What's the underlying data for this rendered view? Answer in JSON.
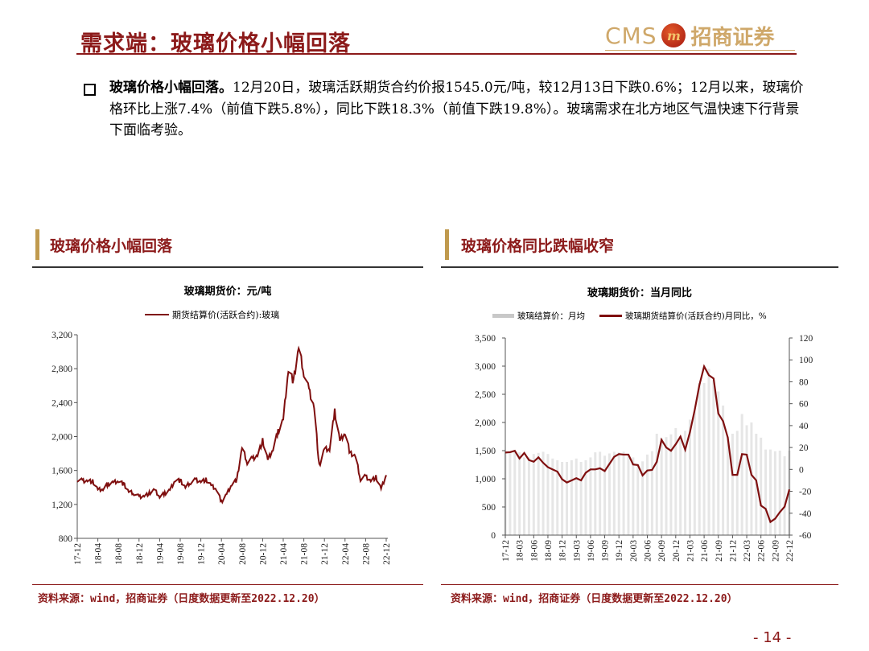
{
  "header": {
    "title": "需求端：玻璃价格小幅回落",
    "logo_text": "CMS",
    "logo_cn": "招商证券",
    "logo_badge": "m"
  },
  "bullet": {
    "bold": "玻璃价格小幅回落。",
    "text": "12月20日，玻璃活跃期货合约价报1545.0元/吨，较12月13日下跌0.6%；12月以来，玻璃价格环比上涨7.4%（前值下跌5.8%），同比下跌18.3%（前值下跌19.8%）。玻璃需求在北方地区气温快速下行背景下面临考验。"
  },
  "panels": [
    {
      "title": "玻璃价格小幅回落",
      "source": "资料来源：wind，招商证券（日度数据更新至2022.12.20）"
    },
    {
      "title": "玻璃价格同比跌幅收窄",
      "source": "资料来源：wind，招商证券（日度数据更新至2022.12.20）"
    }
  ],
  "page_number": "- 14 -",
  "colors": {
    "brand_red": "#8c1a1a",
    "line": "#7f0f0f",
    "gold": "#c09a4e",
    "bars": "#e6e6e6"
  },
  "chart_data": [
    {
      "type": "line",
      "title": "玻璃期货价：元/吨",
      "legend": [
        "期货结算价(活跃合约):玻璃"
      ],
      "legend_position": "top",
      "ylim": [
        800,
        3200
      ],
      "yticks": [
        "800",
        "1,200",
        "1,600",
        "2,000",
        "2,400",
        "2,800",
        "3,200"
      ],
      "xticks": [
        "17-12",
        "18-04",
        "18-08",
        "18-12",
        "19-04",
        "19-08",
        "19-12",
        "20-04",
        "20-08",
        "20-12",
        "21-04",
        "21-08",
        "21-12",
        "22-04",
        "22-08",
        "22-12"
      ],
      "grid": false,
      "series": [
        {
          "name": "期货结算价(活跃合约):玻璃",
          "x": [
            "17-12",
            "18-01",
            "18-02",
            "18-03",
            "18-04",
            "18-05",
            "18-06",
            "18-07",
            "18-08",
            "18-09",
            "18-10",
            "18-11",
            "18-12",
            "19-01",
            "19-02",
            "19-03",
            "19-04",
            "19-05",
            "19-06",
            "19-07",
            "19-08",
            "19-09",
            "19-10",
            "19-11",
            "19-12",
            "20-01",
            "20-02",
            "20-03",
            "20-04",
            "20-05",
            "20-06",
            "20-07",
            "20-08",
            "20-09",
            "20-10",
            "20-11",
            "20-12",
            "21-01",
            "21-02",
            "21-03",
            "21-04",
            "21-05",
            "21-06",
            "21-07",
            "21-08",
            "21-09",
            "21-10",
            "21-11",
            "21-12",
            "22-01",
            "22-02",
            "22-03",
            "22-04",
            "22-05",
            "22-06",
            "22-07",
            "22-08",
            "22-09",
            "22-10",
            "22-11",
            "22-12"
          ],
          "values": [
            1490,
            1480,
            1480,
            1470,
            1370,
            1380,
            1440,
            1460,
            1480,
            1440,
            1350,
            1330,
            1290,
            1300,
            1330,
            1370,
            1290,
            1330,
            1370,
            1490,
            1480,
            1400,
            1460,
            1490,
            1470,
            1490,
            1420,
            1380,
            1230,
            1320,
            1440,
            1490,
            1870,
            1700,
            1740,
            1780,
            1950,
            1720,
            1850,
            2060,
            2200,
            2800,
            2650,
            3050,
            2750,
            2550,
            2350,
            1650,
            1850,
            1850,
            2300,
            1950,
            2050,
            1800,
            1770,
            1500,
            1530,
            1480,
            1520,
            1380,
            1545
          ]
        }
      ]
    },
    {
      "type": "bar+line",
      "title": "玻璃期货价：当月同比",
      "legend": [
        "玻璃结算价：月均",
        "玻璃期货结算价(活跃合约)月同比，%"
      ],
      "legend_position": "top",
      "ylim_left": [
        0,
        3500
      ],
      "yticks_left": [
        "0",
        "500",
        "1,000",
        "1,500",
        "2,000",
        "2,500",
        "3,000",
        "3,500"
      ],
      "ylim_right": [
        -60,
        120
      ],
      "yticks_right": [
        "-60",
        "-40",
        "-20",
        "0",
        "20",
        "40",
        "60",
        "80",
        "100",
        "120"
      ],
      "xticks": [
        "17-12",
        "18-03",
        "18-06",
        "18-09",
        "18-12",
        "19-03",
        "19-06",
        "19-09",
        "19-12",
        "20-03",
        "20-06",
        "20-09",
        "20-12",
        "21-03",
        "21-06",
        "21-09",
        "21-12",
        "22-03",
        "22-06",
        "22-09",
        "22-12"
      ],
      "grid": false,
      "x": [
        "17-12",
        "18-01",
        "18-02",
        "18-03",
        "18-04",
        "18-05",
        "18-06",
        "18-07",
        "18-08",
        "18-09",
        "18-10",
        "18-11",
        "18-12",
        "19-01",
        "19-02",
        "19-03",
        "19-04",
        "19-05",
        "19-06",
        "19-07",
        "19-08",
        "19-09",
        "19-10",
        "19-11",
        "19-12",
        "20-01",
        "20-02",
        "20-03",
        "20-04",
        "20-05",
        "20-06",
        "20-07",
        "20-08",
        "20-09",
        "20-10",
        "20-11",
        "20-12",
        "21-01",
        "21-02",
        "21-03",
        "21-04",
        "21-05",
        "21-06",
        "21-07",
        "21-08",
        "21-09",
        "21-10",
        "21-11",
        "21-12",
        "22-01",
        "22-02",
        "22-03",
        "22-04",
        "22-05",
        "22-06",
        "22-07",
        "22-08",
        "22-09",
        "22-10",
        "22-11",
        "22-12"
      ],
      "series": [
        {
          "name": "玻璃结算价：月均",
          "axis": "left",
          "type": "bar",
          "values": [
            1490,
            1480,
            1480,
            1470,
            1380,
            1380,
            1440,
            1460,
            1480,
            1440,
            1360,
            1330,
            1300,
            1300,
            1330,
            1360,
            1300,
            1330,
            1380,
            1470,
            1480,
            1410,
            1450,
            1480,
            1470,
            1480,
            1430,
            1380,
            1250,
            1310,
            1430,
            1490,
            1800,
            1720,
            1740,
            1790,
            1900,
            1760,
            1850,
            2050,
            2200,
            2700,
            2700,
            2950,
            2750,
            2550,
            2300,
            1750,
            1800,
            1850,
            2150,
            1950,
            2000,
            1800,
            1730,
            1520,
            1520,
            1490,
            1500,
            1400,
            1500
          ]
        },
        {
          "name": "玻璃期货结算价(活跃合约)月同比，%",
          "axis": "right",
          "type": "line",
          "values": [
            15.4,
            15.7,
            17,
            10,
            15,
            8.5,
            7,
            11,
            6,
            2,
            0,
            -2,
            -9,
            -12,
            -10,
            -8,
            -10,
            -3,
            0,
            0,
            1,
            -1.5,
            5,
            11.5,
            14,
            13.5,
            13.5,
            4.5,
            4,
            -5.5,
            -1,
            -0.5,
            7,
            27,
            20,
            17,
            23,
            30,
            18,
            34,
            54,
            77,
            94,
            86,
            83,
            51,
            44,
            29,
            -5,
            -5,
            14,
            13.5,
            -5,
            -10,
            -33,
            -36,
            -48,
            -45,
            -39,
            -34,
            -18.3
          ]
        }
      ]
    }
  ]
}
